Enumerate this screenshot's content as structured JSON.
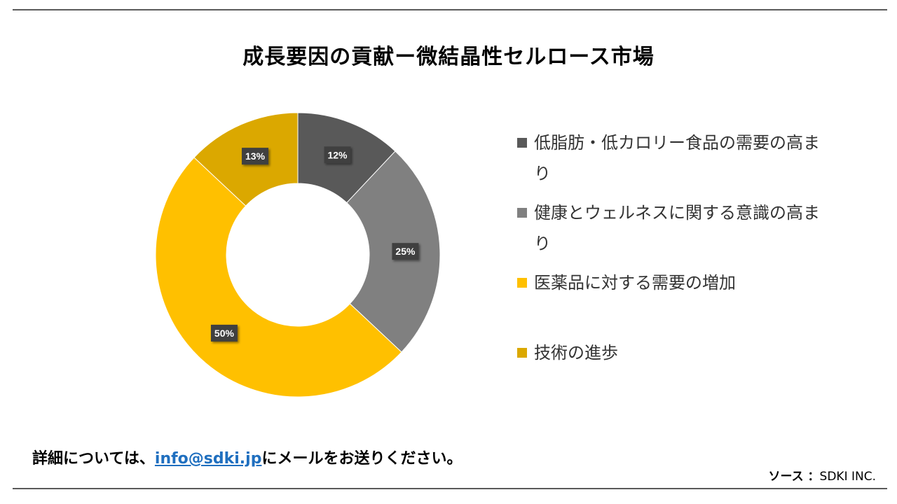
{
  "header": {
    "title": "成長要因の貢献ー微結晶性セルロース市場"
  },
  "chart_data": {
    "type": "pie",
    "donut": true,
    "title": "成長要因の貢献ー微結晶性セルロース市場",
    "categories": [
      "低脂肪・低カロリー食品の需要の高まり",
      "健康とウェルネスに関する意識の高まり",
      "医薬品に対する需要の増加",
      "技術の進歩"
    ],
    "values": [
      12,
      25,
      50,
      13
    ],
    "data_labels": [
      "12%",
      "25%",
      "50%",
      "13%"
    ],
    "colors": [
      "#595959",
      "#808080",
      "#ffc000",
      "#dba800"
    ],
    "legend_position": "right"
  },
  "legend": {
    "items": [
      {
        "label": "低脂肪・低カロリー食品の需要の高まり",
        "color": "#595959"
      },
      {
        "label": "健康とウェルネスに関する意識の高まり",
        "color": "#808080"
      },
      {
        "label": "医薬品に対する需要の増加",
        "color": "#ffc000"
      },
      {
        "label": "技術の進歩",
        "color": "#dba800"
      }
    ]
  },
  "footer": {
    "note_prefix": "詳細については、",
    "email": "info@sdki.jp",
    "note_suffix": "にメールをお送りください。",
    "source_label": "ソース ：",
    "source_value": "SDKI INC."
  }
}
